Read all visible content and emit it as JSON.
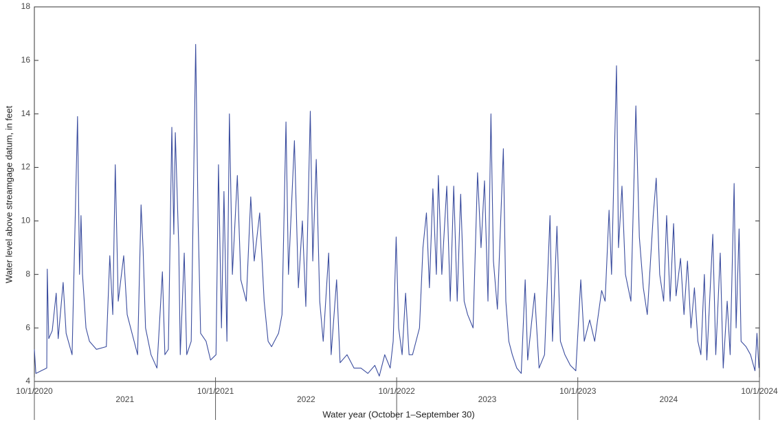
{
  "chart_data": {
    "type": "line",
    "x_label": "Water year (October 1–September 30)",
    "y_label": "Water level above streamgage datum, in feet",
    "xlim": [
      "2020-10-01",
      "2024-10-01"
    ],
    "xticks": [
      {
        "value": "2020-10-01",
        "label": "10/1/2020"
      },
      {
        "value": "2021-10-01",
        "label": "10/1/2021"
      },
      {
        "value": "2022-10-01",
        "label": "10/1/2022"
      },
      {
        "value": "2023-10-01",
        "label": "10/1/2023"
      },
      {
        "value": "2024-10-01",
        "label": "10/1/2024"
      }
    ],
    "x_group_labels": [
      "2021",
      "2022",
      "2023",
      "2024"
    ],
    "ylim": [
      4,
      18
    ],
    "yticks": [
      4,
      6,
      8,
      10,
      12,
      14,
      16,
      18
    ],
    "grid": false,
    "x": [
      "2020-10-01",
      "2020-10-04",
      "2020-10-15",
      "2020-10-26",
      "2020-10-27",
      "2020-10-30",
      "2020-11-06",
      "2020-11-14",
      "2020-11-18",
      "2020-11-28",
      "2020-12-04",
      "2020-12-16",
      "2020-12-27",
      "2020-12-31",
      "2021-01-03",
      "2021-01-06",
      "2021-01-13",
      "2021-01-20",
      "2021-02-03",
      "2021-02-23",
      "2021-03-02",
      "2021-03-08",
      "2021-03-13",
      "2021-03-19",
      "2021-03-30",
      "2021-04-06",
      "2021-04-20",
      "2021-04-27",
      "2021-05-04",
      "2021-05-08",
      "2021-05-13",
      "2021-05-24",
      "2021-06-05",
      "2021-06-16",
      "2021-06-21",
      "2021-06-28",
      "2021-07-05",
      "2021-07-09",
      "2021-07-12",
      "2021-07-19",
      "2021-07-22",
      "2021-07-30",
      "2021-08-04",
      "2021-08-13",
      "2021-08-22",
      "2021-08-27",
      "2021-09-01",
      "2021-09-12",
      "2021-09-21",
      "2021-10-02",
      "2021-10-07",
      "2021-10-13",
      "2021-10-18",
      "2021-10-24",
      "2021-10-29",
      "2021-11-04",
      "2021-11-14",
      "2021-11-21",
      "2021-12-02",
      "2021-12-11",
      "2021-12-18",
      "2021-12-29",
      "2022-01-07",
      "2022-01-15",
      "2022-01-22",
      "2022-02-05",
      "2022-02-12",
      "2022-02-20",
      "2022-02-25",
      "2022-03-09",
      "2022-03-17",
      "2022-03-25",
      "2022-04-01",
      "2022-04-10",
      "2022-04-15",
      "2022-04-22",
      "2022-04-29",
      "2022-05-06",
      "2022-05-17",
      "2022-05-22",
      "2022-06-02",
      "2022-06-09",
      "2022-06-23",
      "2022-07-07",
      "2022-07-21",
      "2022-08-04",
      "2022-08-18",
      "2022-08-27",
      "2022-09-07",
      "2022-09-18",
      "2022-09-24",
      "2022-09-30",
      "2022-10-05",
      "2022-10-12",
      "2022-10-19",
      "2022-10-26",
      "2022-11-02",
      "2022-11-16",
      "2022-11-23",
      "2022-11-30",
      "2022-12-06",
      "2022-12-13",
      "2022-12-20",
      "2022-12-24",
      "2022-12-31",
      "2023-01-10",
      "2023-01-17",
      "2023-01-24",
      "2023-01-31",
      "2023-02-07",
      "2023-02-14",
      "2023-02-21",
      "2023-03-04",
      "2023-03-13",
      "2023-03-20",
      "2023-03-27",
      "2023-04-03",
      "2023-04-09",
      "2023-04-14",
      "2023-04-22",
      "2023-05-04",
      "2023-05-09",
      "2023-05-15",
      "2023-05-22",
      "2023-05-31",
      "2023-06-09",
      "2023-06-17",
      "2023-06-22",
      "2023-07-06",
      "2023-07-15",
      "2023-07-26",
      "2023-08-06",
      "2023-08-11",
      "2023-08-20",
      "2023-08-27",
      "2023-09-05",
      "2023-09-16",
      "2023-09-27",
      "2023-10-07",
      "2023-10-14",
      "2023-10-25",
      "2023-11-04",
      "2023-11-18",
      "2023-11-25",
      "2023-12-03",
      "2023-12-08",
      "2023-12-18",
      "2023-12-22",
      "2023-12-29",
      "2024-01-05",
      "2024-01-16",
      "2024-01-26",
      "2024-02-02",
      "2024-02-10",
      "2024-02-18",
      "2024-03-01",
      "2024-03-07",
      "2024-03-14",
      "2024-03-22",
      "2024-03-28",
      "2024-04-04",
      "2024-04-11",
      "2024-04-16",
      "2024-04-25",
      "2024-05-02",
      "2024-05-09",
      "2024-05-16",
      "2024-05-23",
      "2024-05-30",
      "2024-06-05",
      "2024-06-12",
      "2024-06-17",
      "2024-06-29",
      "2024-07-05",
      "2024-07-14",
      "2024-07-20",
      "2024-07-28",
      "2024-08-03",
      "2024-08-11",
      "2024-08-15",
      "2024-08-21",
      "2024-08-25",
      "2024-09-04",
      "2024-09-13",
      "2024-09-22",
      "2024-09-26",
      "2024-09-30"
    ],
    "series": [
      {
        "color": "#3a4c9e",
        "values": [
          5.2,
          4.3,
          4.4,
          4.5,
          8.2,
          5.6,
          5.9,
          7.3,
          5.6,
          7.7,
          5.8,
          5.0,
          13.9,
          8.0,
          10.2,
          8.0,
          6.0,
          5.5,
          5.2,
          5.3,
          8.7,
          6.5,
          12.1,
          7.0,
          8.7,
          6.5,
          5.5,
          5.0,
          10.6,
          9.0,
          6.0,
          5.0,
          4.5,
          8.1,
          5.0,
          5.2,
          13.5,
          9.5,
          13.3,
          9.0,
          5.0,
          8.8,
          5.0,
          5.5,
          16.6,
          10.0,
          5.8,
          5.5,
          4.8,
          5.0,
          12.1,
          6.0,
          11.1,
          5.5,
          14.0,
          8.0,
          11.7,
          7.8,
          7.0,
          10.9,
          8.5,
          10.3,
          7.0,
          5.5,
          5.3,
          5.8,
          6.5,
          13.7,
          8.0,
          13.0,
          7.5,
          10.0,
          6.8,
          14.1,
          8.5,
          12.3,
          7.0,
          5.5,
          8.8,
          5.0,
          7.8,
          4.7,
          5.0,
          4.5,
          4.5,
          4.3,
          4.6,
          4.2,
          5.0,
          4.5,
          5.5,
          9.4,
          6.0,
          5.0,
          7.3,
          5.0,
          5.0,
          6.0,
          9.0,
          10.3,
          7.5,
          11.2,
          8.0,
          11.7,
          8.0,
          11.3,
          7.0,
          11.3,
          7.0,
          11.0,
          7.0,
          6.5,
          6.0,
          11.8,
          9.0,
          11.5,
          7.0,
          14.0,
          8.5,
          6.7,
          12.7,
          7.0,
          5.5,
          5.0,
          4.5,
          4.3,
          7.8,
          4.8,
          7.3,
          4.5,
          5.0,
          10.2,
          5.5,
          9.8,
          5.5,
          5.0,
          4.6,
          4.4,
          7.8,
          5.5,
          6.3,
          5.5,
          7.4,
          7.0,
          10.4,
          8.0,
          15.8,
          9.0,
          11.3,
          8.0,
          7.0,
          14.3,
          9.4,
          7.5,
          6.5,
          10.2,
          11.6,
          8.0,
          7.0,
          10.2,
          7.0,
          9.9,
          7.2,
          8.6,
          6.5,
          8.5,
          6.0,
          7.5,
          5.5,
          5.0,
          8.0,
          4.8,
          9.5,
          5.0,
          8.8,
          4.5,
          7.0,
          5.0,
          11.4,
          6.0,
          9.7,
          5.5,
          5.3,
          5.0,
          4.4,
          5.8,
          4.5
        ]
      }
    ]
  }
}
